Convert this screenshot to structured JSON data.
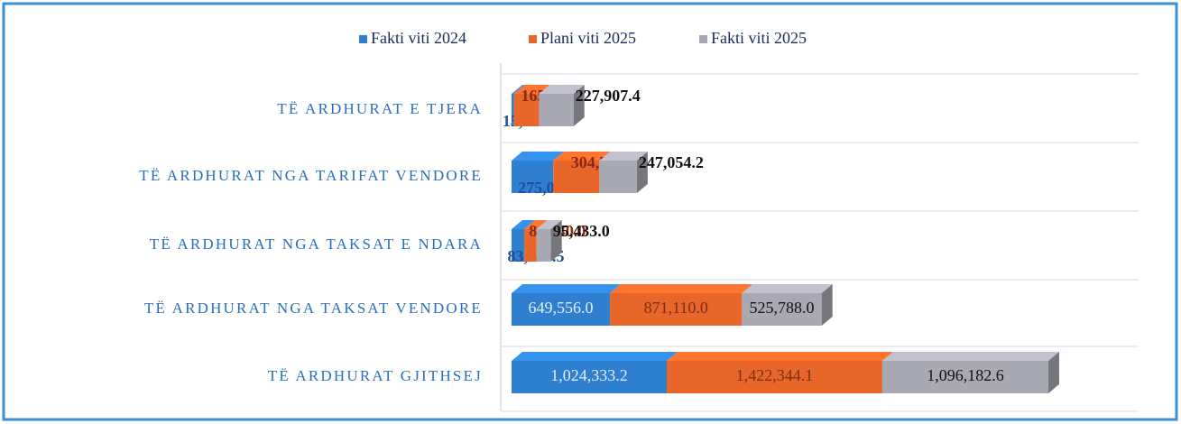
{
  "chart_data": {
    "type": "stacked-bar-horizontal",
    "categories": [
      "TË ARDHURAT E TJERA",
      "TË ARDHURAT NGA TARIFAT VENDORE",
      "TË ARDHURAT NGA TAKSAT E NDARA",
      "TË ARDHURAT NGA TAKSAT VENDORE",
      "TË ARDHURAT GJITHSEJ"
    ],
    "series": [
      {
        "name": "Fakti viti 2024",
        "color": "#2e7fd0",
        "values": [
          15892.0,
          275044.7,
          83840.5,
          649556.0,
          1024333.2
        ],
        "value_labels": [
          "15,892.0",
          "275,044.7",
          "83,840.5",
          "649,556.0",
          "1,024,333.2"
        ]
      },
      {
        "name": "Plani viti 2025",
        "color": "#e8662a",
        "values": [
          165404.7,
          304789.4,
          81040.0,
          871110.0,
          1422344.1
        ],
        "value_labels": [
          "165,404.7",
          "304,789.4",
          "81,040.0",
          "871,110.0",
          "1,422,344.1"
        ]
      },
      {
        "name": "Fakti viti 2025",
        "color": "#a9a9b3",
        "values": [
          227907.4,
          247054.2,
          95433.0,
          525788.0,
          1096182.6
        ],
        "value_labels": [
          "227,907.4",
          "247,054.2",
          "95,433.0",
          "525,788.0",
          "1,096,182.6"
        ]
      }
    ],
    "legend": "top",
    "grid": true
  }
}
